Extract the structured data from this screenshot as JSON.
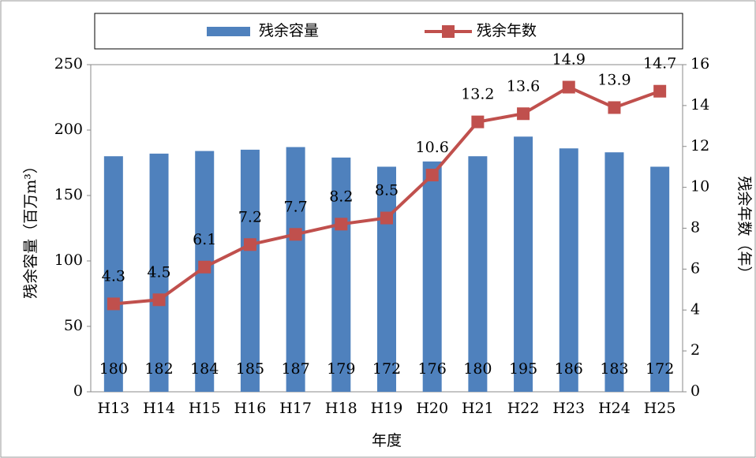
{
  "chart_data": {
    "type": "bar",
    "categories": [
      "H13",
      "H14",
      "H15",
      "H16",
      "H17",
      "H18",
      "H19",
      "H20",
      "H21",
      "H22",
      "H23",
      "H24",
      "H25"
    ],
    "series": [
      {
        "name": "残余容量",
        "color": "#4f81bd",
        "values": [
          180,
          182,
          184,
          185,
          187,
          179,
          172,
          176,
          180,
          195,
          186,
          183,
          172
        ]
      },
      {
        "name": "残余年数",
        "color": "#c0504d",
        "type": "line",
        "axis": "y2",
        "values": [
          4.3,
          4.5,
          6.1,
          7.2,
          7.7,
          8.2,
          8.5,
          10.6,
          13.2,
          13.6,
          14.9,
          13.9,
          14.7
        ]
      }
    ],
    "ylabel": "残余容量（百万m³）",
    "y2label": "残余年数（年）",
    "xlabel": "年度",
    "ylim": [
      0,
      250
    ],
    "yticks": [
      0,
      50,
      100,
      150,
      200,
      250
    ],
    "y2lim": [
      0,
      16
    ],
    "y2ticks": [
      0,
      2,
      4,
      6,
      8,
      10,
      12,
      14,
      16
    ],
    "grid": false,
    "legend": "top"
  }
}
